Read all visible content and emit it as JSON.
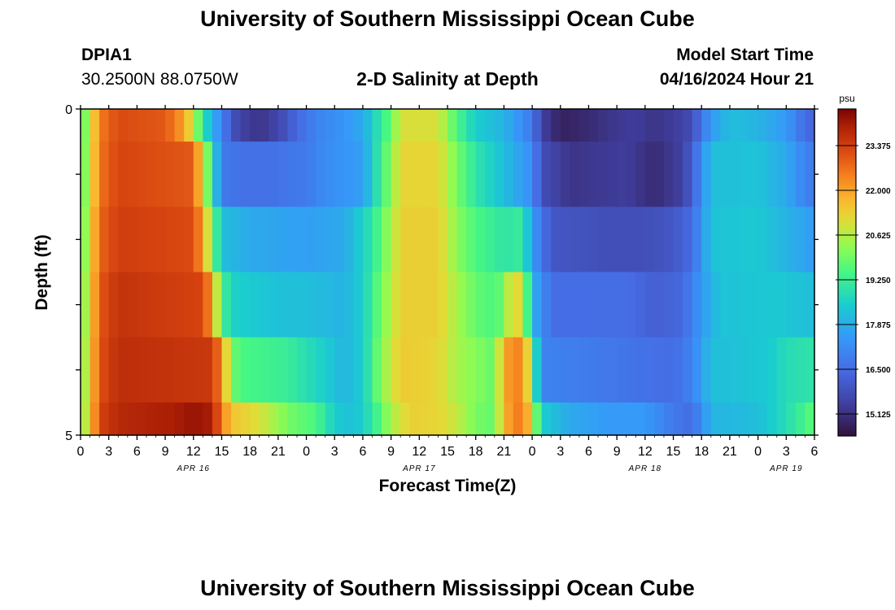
{
  "page": {
    "title": "University of Southern Mississippi Ocean Cube",
    "footer_title": "University of Southern Mississippi Ocean Cube",
    "station_id": "DPIA1",
    "station_location": "30.2500N  88.0750W",
    "model_start_label": "Model Start Time",
    "model_start_value": "04/16/2024 Hour 21"
  },
  "chart_data": {
    "type": "heatmap",
    "title": "2-D Salinity at Depth",
    "xlabel": "Forecast Time(Z)",
    "ylabel": "Depth (ft)",
    "x_start_hour": 0,
    "x_end_hour": 78,
    "x_tick_labels": [
      "0",
      "3",
      "6",
      "9",
      "12",
      "15",
      "18",
      "21",
      "0",
      "3",
      "6",
      "9",
      "12",
      "15",
      "18",
      "21",
      "0",
      "3",
      "6",
      "9",
      "12",
      "15",
      "18",
      "21",
      "0",
      "3",
      "6"
    ],
    "date_labels": [
      {
        "label": "APR 16",
        "hour": 12
      },
      {
        "label": "APR 17",
        "hour": 36
      },
      {
        "label": "APR 18",
        "hour": 60
      },
      {
        "label": "APR 19",
        "hour": 75
      }
    ],
    "ylim": [
      0,
      5
    ],
    "y_tick_labels": [
      "0",
      "5"
    ],
    "colorbar": {
      "unit": "psu",
      "min": 14.45,
      "max": 24.5,
      "tick_labels": [
        "23.375",
        "22.000",
        "20.625",
        "19.250",
        "17.875",
        "16.500",
        "15.125"
      ],
      "tick_values": [
        23.375,
        22.0,
        20.625,
        19.25,
        17.875,
        16.5,
        15.125
      ]
    },
    "layers": [
      {
        "depth_range": [
          0,
          0.5
        ],
        "keypoints": [
          [
            0,
            19.5
          ],
          [
            1,
            20.7
          ],
          [
            2,
            22.5
          ],
          [
            4,
            23.2
          ],
          [
            9,
            23.0
          ],
          [
            11,
            22.0
          ],
          [
            12,
            20.8
          ],
          [
            13,
            19.0
          ],
          [
            15,
            17.0
          ],
          [
            16,
            16.0
          ],
          [
            17,
            15.5
          ],
          [
            19,
            15.2
          ],
          [
            21,
            15.6
          ],
          [
            23,
            16.4
          ],
          [
            25,
            17.0
          ],
          [
            28,
            17.4
          ],
          [
            30,
            17.8
          ],
          [
            31,
            18.5
          ],
          [
            33,
            19.8
          ],
          [
            34,
            21.0
          ],
          [
            38,
            21.0
          ],
          [
            40,
            19.5
          ],
          [
            42,
            18.5
          ],
          [
            45,
            18.0
          ],
          [
            48,
            16.8
          ],
          [
            49,
            15.5
          ],
          [
            51,
            14.8
          ],
          [
            54,
            15.0
          ],
          [
            57,
            15.3
          ],
          [
            59,
            15.4
          ],
          [
            61,
            15.2
          ],
          [
            64,
            15.5
          ],
          [
            65,
            15.8
          ],
          [
            67,
            17.5
          ],
          [
            69,
            18.2
          ],
          [
            72,
            18.0
          ],
          [
            75,
            17.5
          ],
          [
            77,
            16.5
          ],
          [
            78,
            16.3
          ]
        ]
      },
      {
        "depth_range": [
          0.5,
          1.5
        ],
        "keypoints": [
          [
            0,
            19.5
          ],
          [
            1,
            20.8
          ],
          [
            2,
            22.6
          ],
          [
            4,
            23.3
          ],
          [
            12,
            23.0
          ],
          [
            13,
            21.0
          ],
          [
            14,
            19.0
          ],
          [
            15,
            16.8
          ],
          [
            17,
            16.6
          ],
          [
            20,
            16.6
          ],
          [
            24,
            16.8
          ],
          [
            26,
            17.2
          ],
          [
            30,
            17.6
          ],
          [
            31,
            18.5
          ],
          [
            33,
            20.2
          ],
          [
            34,
            21.2
          ],
          [
            38,
            21.2
          ],
          [
            40,
            20.0
          ],
          [
            42,
            19.0
          ],
          [
            45,
            18.2
          ],
          [
            48,
            17.2
          ],
          [
            49,
            15.8
          ],
          [
            52,
            15.2
          ],
          [
            58,
            15.4
          ],
          [
            61,
            15.0
          ],
          [
            64,
            15.5
          ],
          [
            65,
            16.2
          ],
          [
            67,
            18.2
          ],
          [
            72,
            18.3
          ],
          [
            75,
            17.8
          ],
          [
            77,
            17.0
          ],
          [
            78,
            16.8
          ]
        ]
      },
      {
        "depth_range": [
          1.5,
          2.5
        ],
        "keypoints": [
          [
            0,
            19.6
          ],
          [
            1,
            21.0
          ],
          [
            2,
            22.8
          ],
          [
            4,
            23.4
          ],
          [
            12,
            23.2
          ],
          [
            13,
            22.0
          ],
          [
            14,
            20.0
          ],
          [
            15,
            18.2
          ],
          [
            18,
            17.8
          ],
          [
            24,
            17.6
          ],
          [
            28,
            17.8
          ],
          [
            31,
            19.0
          ],
          [
            33,
            20.5
          ],
          [
            34,
            21.3
          ],
          [
            38,
            21.3
          ],
          [
            40,
            20.2
          ],
          [
            42,
            19.5
          ],
          [
            45,
            19.0
          ],
          [
            47,
            19.2
          ],
          [
            48,
            17.5
          ],
          [
            50,
            16.0
          ],
          [
            56,
            15.8
          ],
          [
            60,
            15.8
          ],
          [
            63,
            16.0
          ],
          [
            65,
            16.5
          ],
          [
            67,
            18.3
          ],
          [
            72,
            18.4
          ],
          [
            75,
            18.0
          ],
          [
            78,
            17.5
          ]
        ]
      },
      {
        "depth_range": [
          2.5,
          3.5
        ],
        "keypoints": [
          [
            0,
            19.8
          ],
          [
            1,
            21.1
          ],
          [
            2,
            23.0
          ],
          [
            4,
            23.6
          ],
          [
            13,
            23.3
          ],
          [
            14,
            22.0
          ],
          [
            15,
            19.5
          ],
          [
            16,
            18.6
          ],
          [
            20,
            18.3
          ],
          [
            24,
            18.2
          ],
          [
            28,
            18.0
          ],
          [
            30,
            18.5
          ],
          [
            32,
            20.0
          ],
          [
            34,
            21.3
          ],
          [
            38,
            21.3
          ],
          [
            40,
            20.5
          ],
          [
            42,
            19.8
          ],
          [
            44,
            19.5
          ],
          [
            45,
            20.0
          ],
          [
            46,
            21.5
          ],
          [
            47,
            20.8
          ],
          [
            48,
            18.0
          ],
          [
            50,
            16.5
          ],
          [
            58,
            16.5
          ],
          [
            61,
            16.2
          ],
          [
            64,
            16.4
          ],
          [
            66,
            17.5
          ],
          [
            68,
            18.3
          ],
          [
            74,
            18.4
          ],
          [
            78,
            18.2
          ]
        ]
      },
      {
        "depth_range": [
          3.5,
          4.5
        ],
        "keypoints": [
          [
            0,
            20.0
          ],
          [
            1,
            21.2
          ],
          [
            2,
            23.1
          ],
          [
            4,
            23.7
          ],
          [
            14,
            23.5
          ],
          [
            15,
            22.3
          ],
          [
            16,
            20.0
          ],
          [
            17,
            19.5
          ],
          [
            22,
            19.2
          ],
          [
            26,
            18.5
          ],
          [
            28,
            18.0
          ],
          [
            30,
            18.5
          ],
          [
            32,
            20.2
          ],
          [
            34,
            21.4
          ],
          [
            38,
            21.2
          ],
          [
            40,
            20.5
          ],
          [
            44,
            19.8
          ],
          [
            45,
            22.0
          ],
          [
            47,
            22.5
          ],
          [
            48,
            20.0
          ],
          [
            49,
            17.0
          ],
          [
            55,
            16.8
          ],
          [
            60,
            16.6
          ],
          [
            63,
            16.5
          ],
          [
            65,
            17.0
          ],
          [
            67,
            18.2
          ],
          [
            73,
            18.4
          ],
          [
            75,
            18.8
          ],
          [
            78,
            19.0
          ]
        ]
      },
      {
        "depth_range": [
          4.5,
          5.0
        ],
        "keypoints": [
          [
            0,
            20.1
          ],
          [
            1,
            21.3
          ],
          [
            2,
            23.3
          ],
          [
            4,
            23.8
          ],
          [
            10,
            24.0
          ],
          [
            12,
            24.2
          ],
          [
            14,
            24.0
          ],
          [
            15,
            22.5
          ],
          [
            16,
            21.5
          ],
          [
            19,
            21.0
          ],
          [
            22,
            20.0
          ],
          [
            25,
            19.5
          ],
          [
            27,
            18.5
          ],
          [
            29,
            18.2
          ],
          [
            31,
            19.0
          ],
          [
            33,
            20.5
          ],
          [
            35,
            21.3
          ],
          [
            38,
            21.2
          ],
          [
            40,
            20.8
          ],
          [
            42,
            20.0
          ],
          [
            44,
            19.8
          ],
          [
            45,
            21.8
          ],
          [
            47,
            22.7
          ],
          [
            48,
            21.0
          ],
          [
            49,
            18.5
          ],
          [
            52,
            17.8
          ],
          [
            56,
            17.5
          ],
          [
            60,
            17.5
          ],
          [
            63,
            16.8
          ],
          [
            65,
            16.5
          ],
          [
            67,
            18.0
          ],
          [
            72,
            18.2
          ],
          [
            75,
            18.8
          ],
          [
            77,
            19.4
          ],
          [
            78,
            19.8
          ]
        ]
      }
    ]
  }
}
